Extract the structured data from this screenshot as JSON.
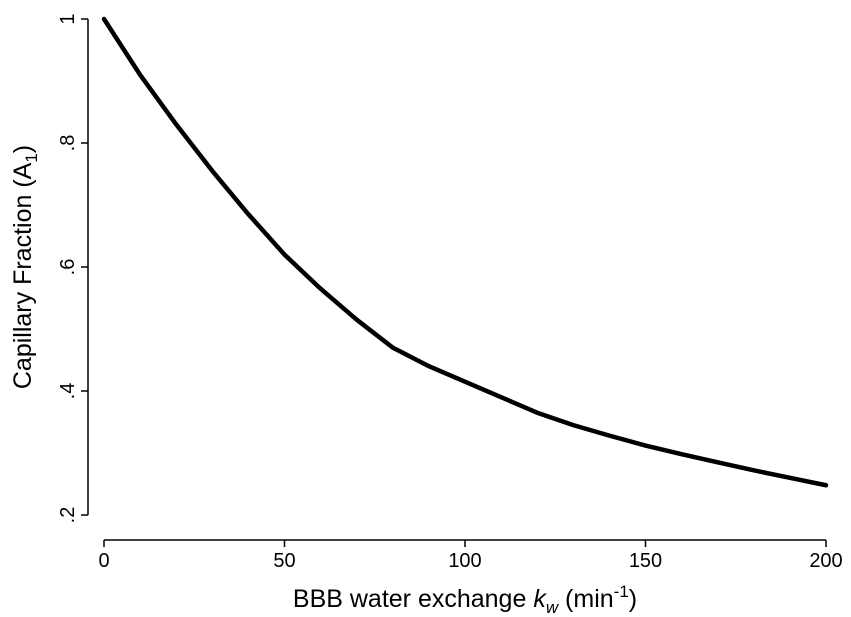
{
  "chart_data": {
    "type": "line",
    "x_label": [
      "BBB water exchange ",
      "k",
      "w",
      " (min",
      "-1",
      ")"
    ],
    "y_label": [
      "Capillary Fraction (A",
      "1",
      ")"
    ],
    "x": [
      0,
      10,
      20,
      30,
      40,
      50,
      60,
      70,
      80,
      90,
      100,
      110,
      120,
      130,
      140,
      150,
      160,
      170,
      180,
      190,
      200
    ],
    "series": [
      {
        "color": "#000000",
        "values": [
          1,
          0.91,
          0.83,
          0.755,
          0.685,
          0.62,
          0.565,
          0.515,
          0.47,
          0.44,
          0.415,
          0.39,
          0.365,
          0.345,
          0.328,
          0.312,
          0.298,
          0.285,
          0.272,
          0.26,
          0.248
        ]
      }
    ],
    "xlim": [
      0,
      200
    ],
    "xticks": [
      0,
      50,
      100,
      150,
      200
    ],
    "ylim": [
      0.2,
      1
    ],
    "yticks": [
      {
        "value": 0.2,
        "label": ".2"
      },
      {
        "value": 0.4,
        "label": ".4"
      },
      {
        "value": 0.6,
        "label": ".6"
      },
      {
        "value": 0.8,
        "label": ".8"
      },
      1
    ],
    "grid": false
  }
}
